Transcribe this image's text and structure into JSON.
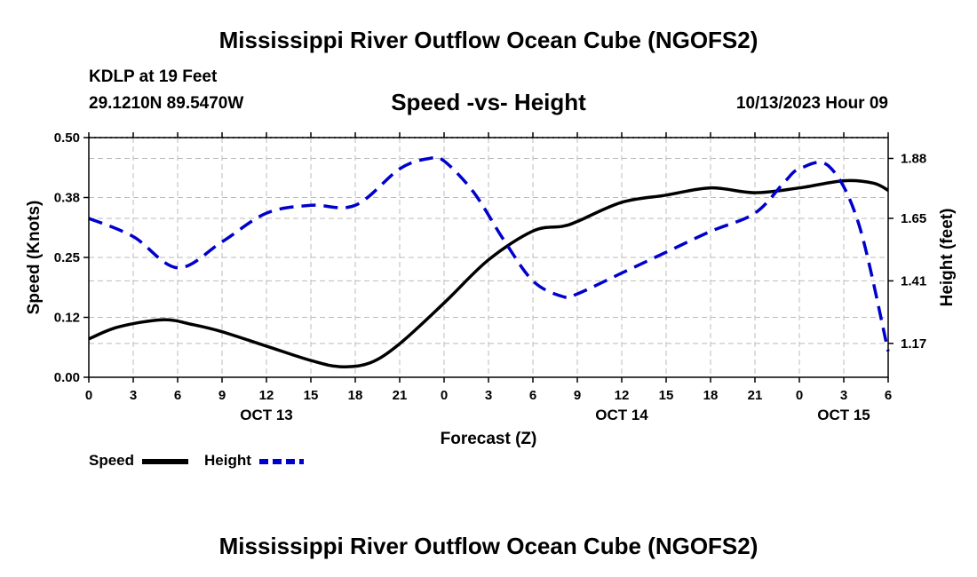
{
  "header": {
    "title": "Mississippi River Outflow Ocean Cube (NGOFS2)",
    "station": "KDLP at 19 Feet",
    "coordinates": "29.1210N  89.5470W",
    "subtitle": "Speed -vs- Height",
    "datetime": "10/13/2023 Hour 09"
  },
  "footer": {
    "title": "Mississippi River Outflow Ocean Cube (NGOFS2)"
  },
  "legend": {
    "speed_label": "Speed",
    "height_label": "Height"
  },
  "colors": {
    "speed": "#000000",
    "height": "#0000cc",
    "grid": "#bbbbbb"
  },
  "chart_data": {
    "type": "line",
    "title": "Speed -vs- Height",
    "xlabel": "Forecast (Z)",
    "ylabel": "Speed (Knots)",
    "y2label": "Height (feet)",
    "x_unit": "hours from OCT 13 00Z",
    "xlim": [
      0,
      54
    ],
    "ylim": [
      0,
      0.5
    ],
    "y2lim": [
      1.04,
      1.96
    ],
    "x_tick_values": [
      0,
      3,
      6,
      9,
      12,
      15,
      18,
      21,
      24,
      27,
      30,
      33,
      36,
      39,
      42,
      45,
      48,
      51,
      54
    ],
    "x_tick_labels": [
      "0",
      "3",
      "6",
      "9",
      "12",
      "15",
      "18",
      "21",
      "0",
      "3",
      "6",
      "9",
      "12",
      "15",
      "18",
      "21",
      "0",
      "3",
      "6"
    ],
    "day_labels": [
      {
        "x": 12,
        "label": "OCT 13"
      },
      {
        "x": 36,
        "label": "OCT 14"
      },
      {
        "x": 51,
        "label": "OCT 15"
      }
    ],
    "y_ticks": [
      {
        "value": 0.0,
        "label": "0.00"
      },
      {
        "value": 0.125,
        "label": "0.12"
      },
      {
        "value": 0.25,
        "label": "0.25"
      },
      {
        "value": 0.375,
        "label": "0.38"
      },
      {
        "value": 0.5,
        "label": "0.50"
      }
    ],
    "y2_ticks": [
      {
        "value": 1.17,
        "label": "1.17"
      },
      {
        "value": 1.41,
        "label": "1.41"
      },
      {
        "value": 1.65,
        "label": "1.65"
      },
      {
        "value": 1.88,
        "label": "1.88"
      }
    ],
    "grid": true,
    "legend_position": "bottom-left",
    "series": [
      {
        "name": "Speed",
        "axis": "left",
        "style": "solid",
        "x": [
          0,
          2,
          5,
          7,
          9,
          12,
          15,
          17,
          19,
          21,
          24,
          27,
          30,
          32,
          33,
          36,
          39,
          42,
          45,
          48,
          51,
          53,
          54
        ],
        "values": [
          0.08,
          0.105,
          0.12,
          0.11,
          0.095,
          0.065,
          0.035,
          0.022,
          0.03,
          0.07,
          0.155,
          0.245,
          0.305,
          0.315,
          0.325,
          0.365,
          0.38,
          0.395,
          0.385,
          0.395,
          0.41,
          0.405,
          0.39
        ]
      },
      {
        "name": "Height",
        "axis": "right",
        "style": "dashed",
        "x": [
          0,
          3,
          6,
          9,
          12,
          15,
          18,
          21,
          23,
          24,
          26,
          28,
          30,
          32,
          33,
          36,
          39,
          42,
          45,
          47,
          48,
          50,
          52,
          54
        ],
        "values": [
          1.65,
          1.58,
          1.46,
          1.56,
          1.67,
          1.7,
          1.7,
          1.84,
          1.88,
          1.87,
          1.75,
          1.57,
          1.41,
          1.35,
          1.36,
          1.44,
          1.52,
          1.6,
          1.67,
          1.79,
          1.84,
          1.85,
          1.63,
          1.14
        ]
      }
    ]
  }
}
